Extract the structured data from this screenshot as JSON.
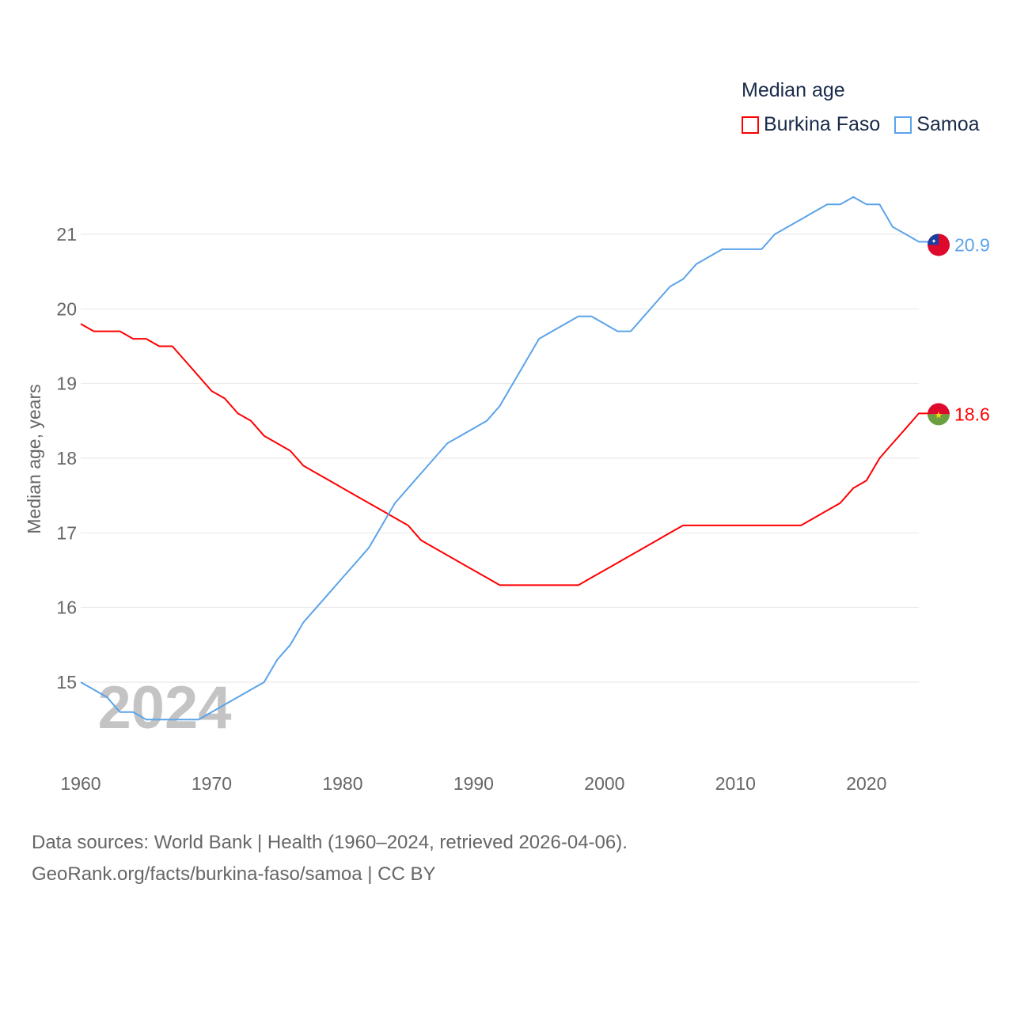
{
  "chart_data": {
    "type": "line",
    "title": "Median age",
    "ylabel": "Median age, years",
    "xlabel": "",
    "xlim": [
      1960,
      2024
    ],
    "ylim": [
      14,
      22
    ],
    "x_ticks": [
      "1960",
      "1970",
      "1980",
      "1990",
      "2000",
      "2010",
      "2020"
    ],
    "y_ticks": [
      "15",
      "16",
      "17",
      "18",
      "19",
      "20",
      "21"
    ],
    "grid": true,
    "legend_position": "top-right",
    "watermark_year": "2024",
    "x": [
      1960,
      1961,
      1962,
      1963,
      1964,
      1965,
      1966,
      1967,
      1968,
      1969,
      1970,
      1971,
      1972,
      1973,
      1974,
      1975,
      1976,
      1977,
      1978,
      1979,
      1980,
      1981,
      1982,
      1983,
      1984,
      1985,
      1986,
      1987,
      1988,
      1989,
      1990,
      1991,
      1992,
      1993,
      1994,
      1995,
      1996,
      1997,
      1998,
      1999,
      2000,
      2001,
      2002,
      2003,
      2004,
      2005,
      2006,
      2007,
      2008,
      2009,
      2010,
      2011,
      2012,
      2013,
      2014,
      2015,
      2016,
      2017,
      2018,
      2019,
      2020,
      2021,
      2022,
      2023,
      2024
    ],
    "series": [
      {
        "name": "Burkina Faso",
        "color": "#ff0000",
        "end_label": "18.6",
        "values": [
          19.8,
          19.7,
          19.7,
          19.7,
          19.6,
          19.6,
          19.5,
          19.5,
          19.3,
          19.1,
          18.9,
          18.8,
          18.6,
          18.5,
          18.3,
          18.2,
          18.1,
          17.9,
          17.8,
          17.7,
          17.6,
          17.5,
          17.4,
          17.3,
          17.2,
          17.1,
          16.9,
          16.8,
          16.7,
          16.6,
          16.5,
          16.4,
          16.3,
          16.3,
          16.3,
          16.3,
          16.3,
          16.3,
          16.3,
          16.4,
          16.5,
          16.6,
          16.7,
          16.8,
          16.9,
          17.0,
          17.1,
          17.1,
          17.1,
          17.1,
          17.1,
          17.1,
          17.1,
          17.1,
          17.1,
          17.1,
          17.2,
          17.3,
          17.4,
          17.6,
          17.7,
          18.0,
          18.2,
          18.4,
          18.6
        ]
      },
      {
        "name": "Samoa",
        "color": "#5ba3ea",
        "end_label": "20.9",
        "values": [
          15.0,
          14.9,
          14.8,
          14.6,
          14.6,
          14.5,
          14.5,
          14.5,
          14.5,
          14.5,
          14.6,
          14.7,
          14.8,
          14.9,
          15.0,
          15.3,
          15.5,
          15.8,
          16.0,
          16.2,
          16.4,
          16.6,
          16.8,
          17.1,
          17.4,
          17.6,
          17.8,
          18.0,
          18.2,
          18.3,
          18.4,
          18.5,
          18.7,
          19.0,
          19.3,
          19.6,
          19.7,
          19.8,
          19.9,
          19.9,
          19.8,
          19.7,
          19.7,
          19.9,
          20.1,
          20.3,
          20.4,
          20.6,
          20.7,
          20.8,
          20.8,
          20.8,
          20.8,
          21.0,
          21.1,
          21.2,
          21.3,
          21.4,
          21.4,
          21.5,
          21.4,
          21.4,
          21.1,
          21.0,
          20.9
        ]
      }
    ]
  },
  "footer": {
    "line1": "Data sources: World Bank | Health (1960–2024, retrieved 2026-04-06).",
    "line2": "GeoRank.org/facts/burkina-faso/samoa | CC BY"
  }
}
